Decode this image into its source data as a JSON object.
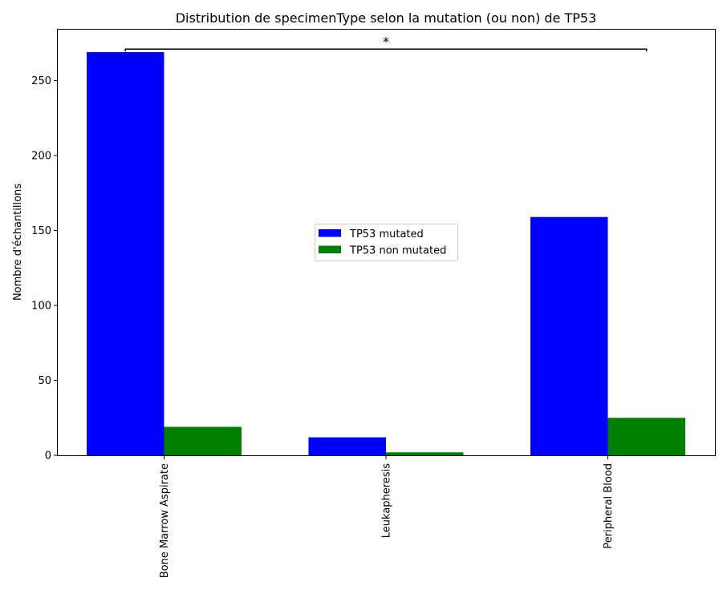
{
  "chart_data": {
    "type": "bar",
    "title": "Distribution de specimenType selon la mutation (ou non) de TP53",
    "xlabel": "",
    "ylabel": "Nombre d'échantillons",
    "categories": [
      "Bone Marrow Aspirate",
      "Leukapheresis",
      "Peripheral Blood"
    ],
    "series": [
      {
        "name": "TP53 mutated",
        "color": "#0000ff",
        "values": [
          269,
          12,
          159
        ]
      },
      {
        "name": "TP53 non mutated",
        "color": "#008000",
        "values": [
          19,
          2,
          25
        ]
      }
    ],
    "ylim": [
      0,
      284
    ],
    "yticks": [
      0,
      50,
      100,
      150,
      200,
      250
    ],
    "grid": false,
    "legend_position": "center",
    "annotation": {
      "text": "*",
      "bracket_from": "Bone Marrow Aspirate",
      "bracket_to": "Peripheral Blood",
      "y": 271
    }
  }
}
